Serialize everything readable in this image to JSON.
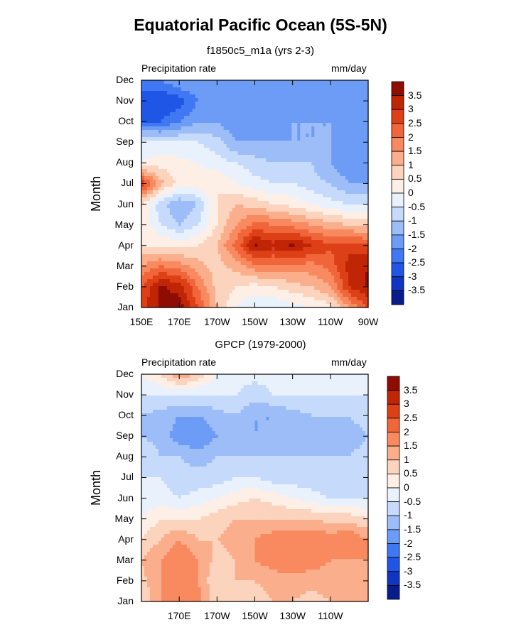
{
  "figure": {
    "title": "Equatorial Pacific Ocean (5S-5N)",
    "ylabel": "Month"
  },
  "colors": {
    "levels": [
      "#081d8a",
      "#0f35c2",
      "#1f56e6",
      "#3f78f2",
      "#6c9cf6",
      "#9dbdf8",
      "#c6dafb",
      "#e9f1fd",
      "#fdeee6",
      "#fcd3bc",
      "#fbae8c",
      "#f98a60",
      "#f0663a",
      "#dd4016",
      "#c02505",
      "#8e0c02"
    ]
  },
  "chart_data": [
    {
      "type": "heatmap",
      "title": "f1850c5_m1a (yrs 2-3)",
      "left_label": "Precipitation rate",
      "right_label": "mm/day",
      "ylabel": "Month",
      "x_ticks": [
        "150E",
        "170E",
        "170W",
        "150W",
        "130W",
        "110W",
        "90W"
      ],
      "x_tick_values": [
        150,
        170,
        190,
        210,
        230,
        250,
        270
      ],
      "xlim": [
        150,
        270
      ],
      "y_ticks": [
        "Jan",
        "Feb",
        "Mar",
        "Apr",
        "May",
        "Jun",
        "Jul",
        "Aug",
        "Sep",
        "Oct",
        "Nov",
        "Dec"
      ],
      "ylim": [
        1,
        12
      ],
      "colorbar_labels": [
        "3.5",
        "3",
        "2.5",
        "2",
        "1.5",
        "1",
        "0.5",
        "0",
        "-0.5",
        "-1",
        "-1.5",
        "-2",
        "-2.5",
        "-3",
        "-3.5"
      ],
      "x": [
        150,
        160,
        170,
        180,
        190,
        200,
        210,
        220,
        230,
        240,
        250,
        260,
        270
      ],
      "months": [
        1,
        2,
        3,
        4,
        5,
        6,
        7,
        8,
        9,
        10,
        11,
        12
      ],
      "z": [
        [
          2.8,
          3.6,
          3.8,
          2.5,
          1.0,
          0.0,
          -0.5,
          -0.5,
          -0.2,
          0.0,
          0.3,
          1.5,
          2.5
        ],
        [
          2.5,
          3.6,
          3.3,
          2.0,
          0.8,
          0.5,
          0.3,
          0.5,
          0.8,
          1.0,
          1.5,
          3.0,
          3.6
        ],
        [
          1.5,
          2.0,
          1.8,
          1.2,
          0.8,
          1.2,
          1.8,
          1.8,
          1.8,
          1.8,
          2.2,
          3.2,
          3.5
        ],
        [
          0.5,
          0.5,
          0.3,
          0.5,
          1.0,
          2.2,
          3.6,
          3.2,
          3.6,
          3.0,
          2.6,
          2.8,
          2.5
        ],
        [
          0.5,
          -0.5,
          -1.0,
          -0.5,
          0.5,
          1.5,
          2.2,
          2.0,
          1.8,
          1.5,
          1.2,
          1.0,
          0.8
        ],
        [
          0.5,
          -0.8,
          -1.5,
          -1.0,
          0.5,
          1.0,
          0.8,
          0.5,
          0.3,
          0.0,
          -0.3,
          -0.5,
          -0.5
        ],
        [
          3.0,
          1.2,
          0.3,
          0.3,
          0.5,
          0.0,
          -0.3,
          -0.5,
          -0.5,
          -0.8,
          -1.0,
          -1.5,
          -1.5
        ],
        [
          0.0,
          0.3,
          0.2,
          0.0,
          -0.3,
          -0.5,
          -0.8,
          -1.0,
          -1.0,
          -1.0,
          -1.5,
          -2.0,
          -1.5
        ],
        [
          -0.3,
          -0.5,
          -0.5,
          -0.5,
          -0.8,
          -1.5,
          -1.5,
          -1.5,
          -1.5,
          -1.5,
          -1.5,
          -2.0,
          -1.5
        ],
        [
          -2.5,
          -2.5,
          -2.0,
          -1.5,
          -1.5,
          -2.0,
          -2.0,
          -1.8,
          -1.5,
          -1.5,
          -1.5,
          -2.0,
          -1.5
        ],
        [
          -3.0,
          -3.0,
          -2.8,
          -2.0,
          -1.5,
          -2.0,
          -2.0,
          -2.0,
          -2.0,
          -1.8,
          -1.5,
          -2.0,
          -1.5
        ],
        [
          -2.0,
          -2.0,
          -1.5,
          -1.5,
          -1.5,
          -1.8,
          -1.8,
          -1.8,
          -1.5,
          -1.5,
          -1.5,
          -2.0,
          -1.5
        ]
      ]
    },
    {
      "type": "heatmap",
      "title": "GPCP (1979-2000)",
      "left_label": "Precipitation rate",
      "right_label": "mm/day",
      "ylabel": "Month",
      "x_ticks": [
        "170E",
        "170W",
        "150W",
        "130W",
        "110W"
      ],
      "x_tick_values": [
        170,
        190,
        210,
        230,
        250
      ],
      "xlim": [
        150,
        270
      ],
      "y_ticks": [
        "Jan",
        "Feb",
        "Mar",
        "Apr",
        "May",
        "Jun",
        "Jul",
        "Aug",
        "Sep",
        "Oct",
        "Nov",
        "Dec"
      ],
      "ylim": [
        1,
        12
      ],
      "colorbar_labels": [
        "3.5",
        "3",
        "2.5",
        "2",
        "1.5",
        "1",
        "0.5",
        "0",
        "-0.5",
        "-1",
        "-1.5",
        "-2",
        "-2.5",
        "-3",
        "-3.5"
      ],
      "x": [
        150,
        160,
        170,
        180,
        190,
        200,
        210,
        220,
        230,
        240,
        250,
        260,
        270
      ],
      "months": [
        1,
        2,
        3,
        4,
        5,
        6,
        7,
        8,
        9,
        10,
        11,
        12
      ],
      "z": [
        [
          0.5,
          1.5,
          1.5,
          1.8,
          0.5,
          0.5,
          0.8,
          1.0,
          1.0,
          0.8,
          1.0,
          1.0,
          1.0
        ],
        [
          0.8,
          1.5,
          1.5,
          1.5,
          0.5,
          1.0,
          1.0,
          1.2,
          1.2,
          1.2,
          1.2,
          1.2,
          1.2
        ],
        [
          1.0,
          1.5,
          2.0,
          1.5,
          0.8,
          1.0,
          1.5,
          1.8,
          2.0,
          1.8,
          1.5,
          1.5,
          1.5
        ],
        [
          0.5,
          1.0,
          1.5,
          1.0,
          1.0,
          1.2,
          1.5,
          1.8,
          2.0,
          2.0,
          1.8,
          2.0,
          1.5
        ],
        [
          0.0,
          0.5,
          0.5,
          0.5,
          0.8,
          1.0,
          1.0,
          1.0,
          1.0,
          1.0,
          0.8,
          0.8,
          0.5
        ],
        [
          -0.3,
          -0.3,
          -0.5,
          -0.3,
          0.0,
          0.3,
          0.5,
          0.3,
          0.0,
          -0.3,
          -0.5,
          -0.5,
          -0.5
        ],
        [
          -0.5,
          -0.5,
          -0.8,
          -0.8,
          -0.8,
          -0.5,
          -0.5,
          -0.8,
          -0.8,
          -0.8,
          -1.0,
          -0.8,
          -0.8
        ],
        [
          -0.5,
          -1.0,
          -1.0,
          -1.2,
          -1.0,
          -1.0,
          -1.0,
          -1.0,
          -1.0,
          -1.0,
          -1.0,
          -1.0,
          -0.8
        ],
        [
          -1.0,
          -1.2,
          -1.8,
          -2.0,
          -1.5,
          -1.0,
          -1.5,
          -1.5,
          -1.2,
          -1.0,
          -1.2,
          -1.2,
          -1.0
        ],
        [
          -1.0,
          -1.2,
          -1.5,
          -1.5,
          -1.2,
          -1.0,
          -1.5,
          -1.5,
          -1.2,
          -1.0,
          -1.0,
          -1.0,
          -0.8
        ],
        [
          -0.5,
          -0.5,
          -0.5,
          -0.5,
          -0.5,
          -0.5,
          -0.8,
          -0.5,
          -0.5,
          -0.5,
          -0.5,
          -0.5,
          -0.5
        ],
        [
          0.0,
          0.5,
          1.5,
          0.8,
          0.0,
          -0.3,
          -0.3,
          -0.3,
          -0.3,
          -0.3,
          -0.3,
          -0.3,
          -0.3
        ]
      ]
    }
  ]
}
